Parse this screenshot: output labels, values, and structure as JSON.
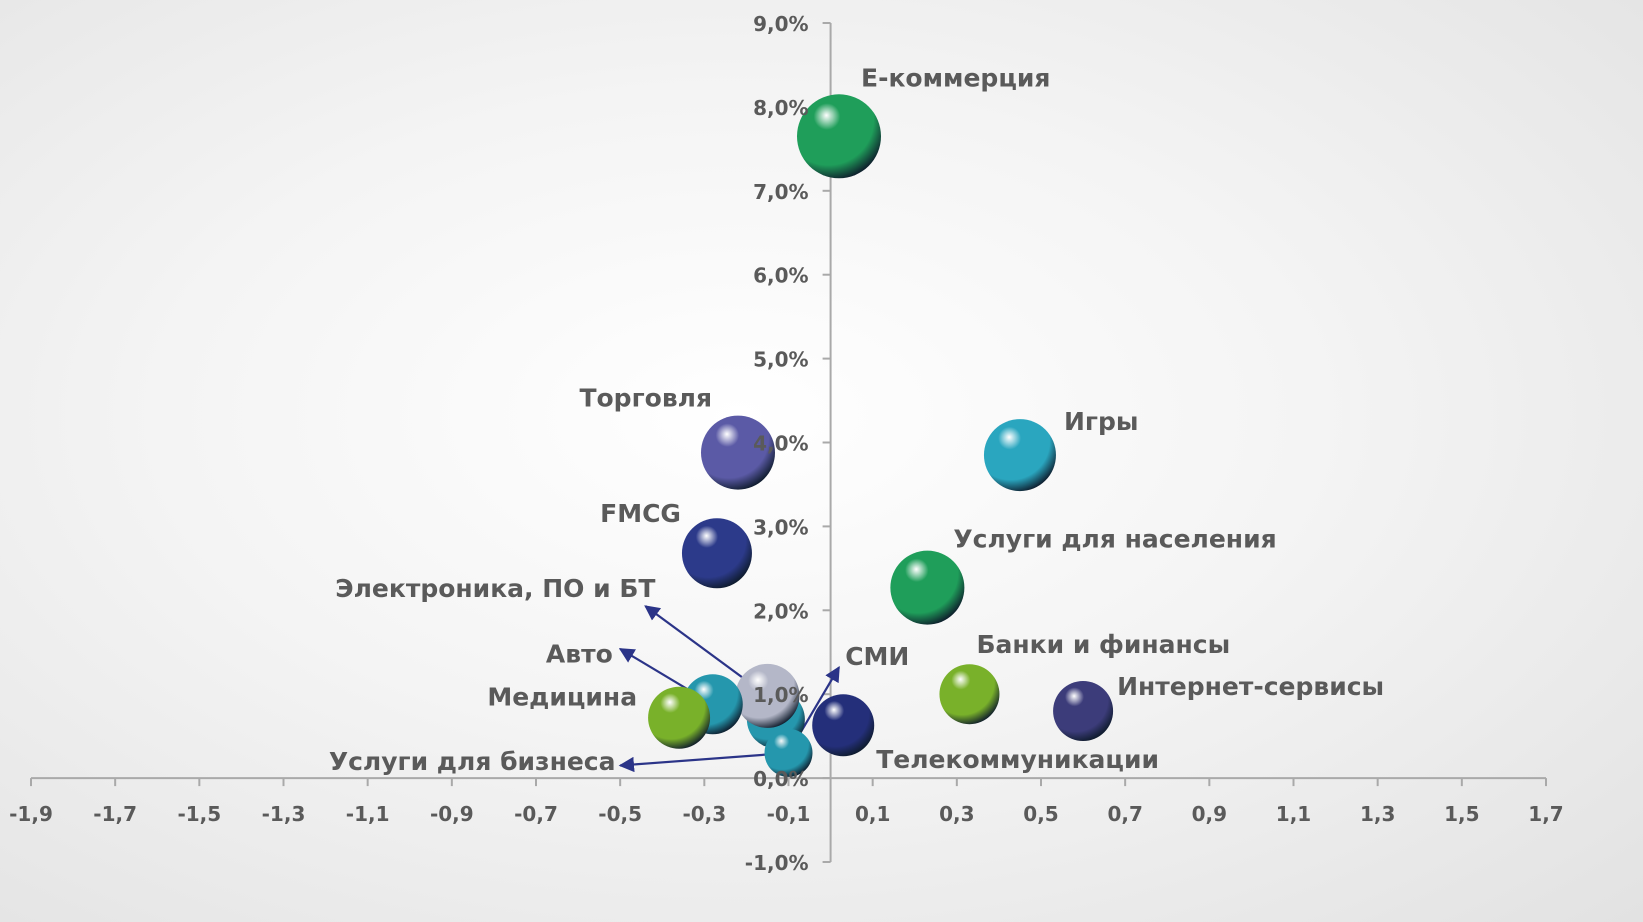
{
  "chart_data": {
    "type": "bubble",
    "title": "",
    "xlabel": "",
    "ylabel": "",
    "xlim": [
      -1.9,
      1.7
    ],
    "ylim": [
      -1.0,
      9.0
    ],
    "x_ticks": [
      "-1,9",
      "-1,7",
      "-1,5",
      "-1,3",
      "-1,1",
      "-0,9",
      "-0,7",
      "-0,5",
      "-0,3",
      "-0,1",
      "0,1",
      "0,3",
      "0,5",
      "0,7",
      "0,9",
      "1,1",
      "1,3",
      "1,5",
      "1,7"
    ],
    "y_ticks": [
      "-1,0%",
      "0,0%",
      "1,0%",
      "2,0%",
      "3,0%",
      "4,0%",
      "5,0%",
      "6,0%",
      "7,0%",
      "8,0%",
      "9,0%"
    ],
    "grid": false,
    "legend": "none",
    "points": [
      {
        "label": "E-коммерция",
        "x": 0.02,
        "y": 7.65,
        "size": 42,
        "color": "#1f9e5a"
      },
      {
        "label": "Игры",
        "x": 0.45,
        "y": 3.85,
        "size": 36,
        "color": "#2aa6bf"
      },
      {
        "label": "Торговля",
        "x": -0.22,
        "y": 3.88,
        "size": 37,
        "color": "#5b5aa6"
      },
      {
        "label": "FMCG",
        "x": -0.27,
        "y": 2.68,
        "size": 35,
        "color": "#2c3a8a"
      },
      {
        "label": "Услуги для населения",
        "x": 0.23,
        "y": 2.27,
        "size": 37,
        "color": "#1f9e5a"
      },
      {
        "label": "Электроника, ПО и БТ",
        "x": -0.15,
        "y": 0.98,
        "size": 32,
        "color": "#b4b7c8"
      },
      {
        "label": "Авто",
        "x": -0.28,
        "y": 0.88,
        "size": 30,
        "color": "#2597ad"
      },
      {
        "label": "Медицина",
        "x": -0.36,
        "y": 0.72,
        "size": 31,
        "color": "#79b12a"
      },
      {
        "label": "Услуги для бизнеса",
        "x": -0.1,
        "y": 0.3,
        "size": 24,
        "color": "#2597ad"
      },
      {
        "label": "СМИ",
        "x": 0.03,
        "y": 0.63,
        "size": 31,
        "color": "#242f7a"
      },
      {
        "label": "Банки и финансы",
        "x": 0.33,
        "y": 1.0,
        "size": 30,
        "color": "#79b12a"
      },
      {
        "label": "Интернет-сервисы",
        "x": 0.6,
        "y": 0.8,
        "size": 30,
        "color": "#3c3c7a"
      },
      {
        "label": "Телекоммуникации",
        "x": 0.03,
        "y": 0.63,
        "size": 0,
        "color": "#242f7a"
      }
    ],
    "extra_bubbles": [
      {
        "x": -0.13,
        "y": 0.7,
        "size": 29,
        "color": "#2597ad"
      }
    ],
    "annotation_arrows": [
      {
        "for": "Электроника, ПО и БТ"
      },
      {
        "for": "Авто"
      },
      {
        "for": "Услуги для бизнеса"
      },
      {
        "for": "СМИ"
      }
    ]
  }
}
